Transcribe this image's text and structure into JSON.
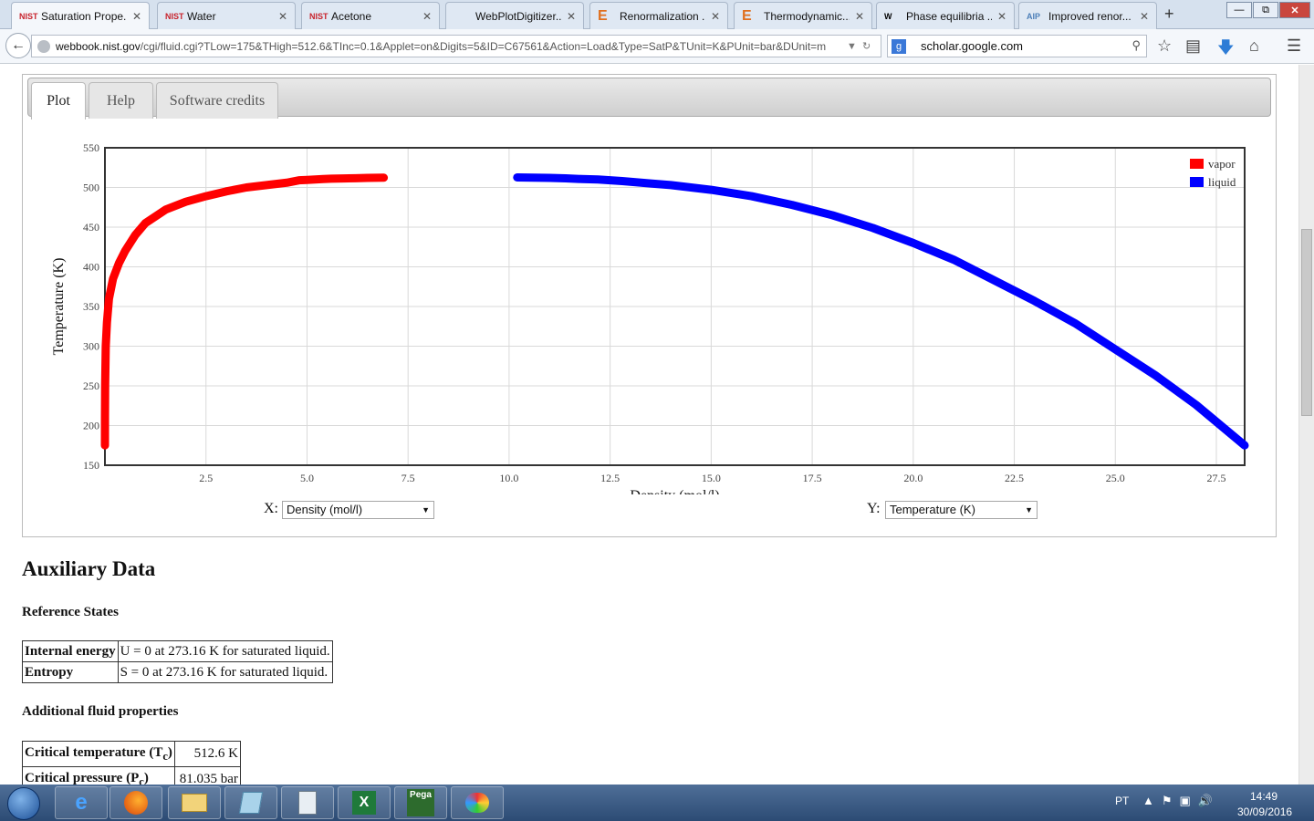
{
  "browser": {
    "tabs": [
      {
        "favicon": "NIST",
        "label": "Saturation Prope...",
        "active": true
      },
      {
        "favicon": "NIST",
        "label": "Water"
      },
      {
        "favicon": "NIST",
        "label": "Acetone"
      },
      {
        "favicon": "",
        "label": "WebPlotDigitizer..."
      },
      {
        "favicon": "E",
        "label": "Renormalization ..."
      },
      {
        "favicon": "E",
        "label": "Thermodynamic..."
      },
      {
        "favicon": "W",
        "label": "Phase equilibria ..."
      },
      {
        "favicon": "AIP",
        "label": "Improved renor..."
      }
    ],
    "new_tab": "+",
    "url_host": "webbook.nist.gov",
    "url_path": "/cgi/fluid.cgi?TLow=175&THigh=512.6&TInc=0.1&Applet=on&Digits=5&ID=C67561&Action=Load&Type=SatP&TUnit=K&PUnit=bar&DUnit=m",
    "search_text": "scholar.google.com",
    "icons": [
      "back-arrow-icon",
      "star-icon",
      "reading-list-icon",
      "download-icon",
      "home-icon",
      "menu-icon"
    ]
  },
  "page": {
    "tabs": [
      {
        "label": "Plot",
        "active": true
      },
      {
        "label": "Help"
      },
      {
        "label": "Software credits"
      }
    ],
    "x_select_label": "X:",
    "x_select_value": "Density (mol/l)",
    "y_select_label": "Y:",
    "y_select_value": "Temperature (K)",
    "aux_title": "Auxiliary Data",
    "ref_title": "Reference States",
    "ref_rows": [
      {
        "key": "Internal energy",
        "value": "U = 0 at 273.16 K for saturated liquid."
      },
      {
        "key": "Entropy",
        "value": "S = 0 at 273.16 K for saturated liquid."
      }
    ],
    "fluid_title": "Additional fluid properties",
    "fluid_rows": [
      {
        "key": "Critical temperature (T",
        "sub": "c",
        "value": "512.6 K"
      },
      {
        "key": "Critical pressure (P",
        "sub": "c",
        "value": "81.035 bar"
      }
    ]
  },
  "chart_data": {
    "type": "scatter",
    "xlabel": "Density (mol/l)",
    "ylabel": "Temperature (K)",
    "xlim": [
      0,
      28.2
    ],
    "ylim": [
      150,
      550
    ],
    "xticks": [
      "2.5",
      "5.0",
      "7.5",
      "10.0",
      "12.5",
      "15.0",
      "17.5",
      "20.0",
      "22.5",
      "25.0",
      "27.5"
    ],
    "yticks": [
      "150",
      "200",
      "250",
      "300",
      "350",
      "400",
      "450",
      "500",
      "550"
    ],
    "grid": true,
    "legend_position": "top-right",
    "series": [
      {
        "name": "vapor",
        "color": "#ff0000",
        "points": [
          [
            0.0001,
            175
          ],
          [
            0.001,
            210
          ],
          [
            0.005,
            250
          ],
          [
            0.02,
            300
          ],
          [
            0.05,
            330
          ],
          [
            0.1,
            360
          ],
          [
            0.2,
            385
          ],
          [
            0.35,
            405
          ],
          [
            0.5,
            420
          ],
          [
            0.75,
            440
          ],
          [
            1.0,
            455
          ],
          [
            1.5,
            472
          ],
          [
            2.0,
            482
          ],
          [
            2.5,
            489
          ],
          [
            3.0,
            495
          ],
          [
            3.5,
            500
          ],
          [
            4.0,
            503
          ],
          [
            4.5,
            506
          ],
          [
            4.8,
            509
          ],
          [
            5.0,
            509.5
          ],
          [
            5.2,
            510
          ],
          [
            5.4,
            510.6
          ],
          [
            5.6,
            511
          ],
          [
            5.9,
            511.4
          ],
          [
            6.2,
            511.7
          ],
          [
            6.5,
            512
          ],
          [
            6.9,
            512.3
          ]
        ]
      },
      {
        "name": "liquid",
        "color": "#0000ff",
        "points": [
          [
            10.2,
            512.6
          ],
          [
            10.6,
            512.3
          ],
          [
            11.0,
            512
          ],
          [
            11.4,
            511.5
          ],
          [
            11.8,
            510.6
          ],
          [
            12.2,
            510
          ],
          [
            12.5,
            509
          ],
          [
            12.8,
            508
          ],
          [
            13.5,
            505
          ],
          [
            14.0,
            503
          ],
          [
            15.0,
            497
          ],
          [
            16.0,
            489
          ],
          [
            17.0,
            478
          ],
          [
            18.0,
            465
          ],
          [
            19.0,
            449
          ],
          [
            20.0,
            430
          ],
          [
            21.0,
            409
          ],
          [
            22.0,
            383
          ],
          [
            23.0,
            357
          ],
          [
            24.0,
            329
          ],
          [
            25.0,
            296
          ],
          [
            26.0,
            263
          ],
          [
            27.0,
            226
          ],
          [
            28.2,
            175
          ]
        ]
      }
    ]
  },
  "taskbar": {
    "lang": "PT",
    "time": "14:49",
    "date": "30/09/2016",
    "apps": [
      "internet-explorer-icon",
      "firefox-icon",
      "file-explorer-icon",
      "notepad-icon",
      "calculator-icon",
      "excel-icon",
      "pega-pontos-icon",
      "paint-icon"
    ],
    "pega_label": "Pega"
  }
}
